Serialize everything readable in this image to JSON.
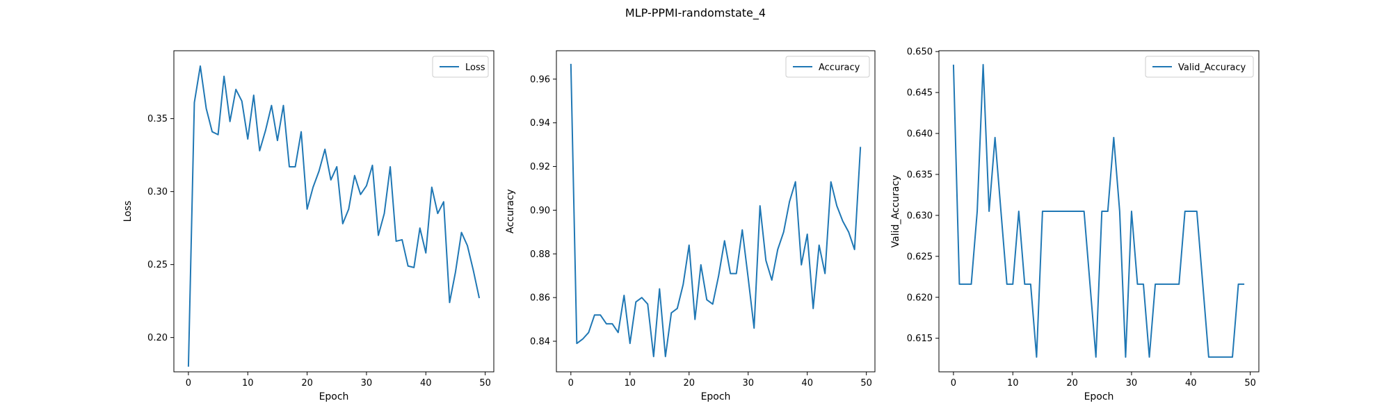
{
  "figure": {
    "title": "MLP-PPMI-randomstate_4"
  },
  "colors": {
    "line": "#1f77b4",
    "axes": "#000000",
    "legend_border": "#cccccc"
  },
  "chart_data": [
    {
      "type": "line",
      "xlabel": "Epoch",
      "ylabel": "Loss",
      "xlim": [
        -2.45,
        51.45
      ],
      "ylim": [
        0.1765,
        0.3965
      ],
      "xticks": [
        0,
        10,
        20,
        30,
        40,
        50
      ],
      "yticks": [
        0.2,
        0.25,
        0.3,
        0.35
      ],
      "ytick_labels": [
        "0.20",
        "0.25",
        "0.30",
        "0.35"
      ],
      "legend": "upper right",
      "series": [
        {
          "name": "Loss",
          "x": [
            0,
            1,
            2,
            3,
            4,
            5,
            6,
            7,
            8,
            9,
            10,
            11,
            12,
            13,
            14,
            15,
            16,
            17,
            18,
            19,
            20,
            21,
            22,
            23,
            24,
            25,
            26,
            27,
            28,
            29,
            30,
            31,
            32,
            33,
            34,
            35,
            36,
            37,
            38,
            39,
            40,
            41,
            42,
            43,
            44,
            45,
            46,
            47,
            48,
            49
          ],
          "y": [
            0.18,
            0.361,
            0.386,
            0.357,
            0.341,
            0.339,
            0.379,
            0.348,
            0.37,
            0.362,
            0.336,
            0.366,
            0.328,
            0.342,
            0.359,
            0.335,
            0.359,
            0.317,
            0.317,
            0.341,
            0.288,
            0.303,
            0.314,
            0.329,
            0.308,
            0.317,
            0.278,
            0.288,
            0.311,
            0.298,
            0.304,
            0.318,
            0.27,
            0.285,
            0.317,
            0.266,
            0.267,
            0.249,
            0.248,
            0.275,
            0.258,
            0.303,
            0.285,
            0.293,
            0.224,
            0.245,
            0.272,
            0.263,
            0.246,
            0.227
          ]
        }
      ]
    },
    {
      "type": "line",
      "xlabel": "Epoch",
      "ylabel": "Accuracy",
      "xlim": [
        -2.45,
        51.45
      ],
      "ylim": [
        0.826,
        0.973
      ],
      "xticks": [
        0,
        10,
        20,
        30,
        40,
        50
      ],
      "yticks": [
        0.84,
        0.86,
        0.88,
        0.9,
        0.92,
        0.94,
        0.96
      ],
      "ytick_labels": [
        "0.84",
        "0.86",
        "0.88",
        "0.90",
        "0.92",
        "0.94",
        "0.96"
      ],
      "legend": "upper right",
      "series": [
        {
          "name": "Accuracy",
          "x": [
            0,
            1,
            2,
            3,
            4,
            5,
            6,
            7,
            8,
            9,
            10,
            11,
            12,
            13,
            14,
            15,
            16,
            17,
            18,
            19,
            20,
            21,
            22,
            23,
            24,
            25,
            26,
            27,
            28,
            29,
            30,
            31,
            32,
            33,
            34,
            35,
            36,
            37,
            38,
            39,
            40,
            41,
            42,
            43,
            44,
            45,
            46,
            47,
            48,
            49
          ],
          "y": [
            0.967,
            0.839,
            0.841,
            0.844,
            0.852,
            0.852,
            0.848,
            0.848,
            0.844,
            0.861,
            0.839,
            0.858,
            0.86,
            0.857,
            0.833,
            0.864,
            0.833,
            0.853,
            0.855,
            0.866,
            0.884,
            0.85,
            0.875,
            0.859,
            0.857,
            0.87,
            0.886,
            0.871,
            0.871,
            0.891,
            0.869,
            0.846,
            0.902,
            0.877,
            0.868,
            0.882,
            0.89,
            0.904,
            0.913,
            0.875,
            0.889,
            0.855,
            0.884,
            0.871,
            0.913,
            0.902,
            0.895,
            0.89,
            0.882,
            0.929
          ]
        }
      ]
    },
    {
      "type": "line",
      "xlabel": "Epoch",
      "ylabel": "Valid_Accuracy",
      "xlim": [
        -2.45,
        51.45
      ],
      "ylim": [
        0.6109,
        0.6501
      ],
      "xticks": [
        0,
        10,
        20,
        30,
        40,
        50
      ],
      "yticks": [
        0.615,
        0.62,
        0.625,
        0.63,
        0.635,
        0.64,
        0.645,
        0.65
      ],
      "ytick_labels": [
        "0.615",
        "0.620",
        "0.625",
        "0.630",
        "0.635",
        "0.640",
        "0.645",
        "0.650"
      ],
      "legend": "upper right",
      "series": [
        {
          "name": "Valid_Accuracy",
          "x": [
            0,
            1,
            2,
            3,
            4,
            5,
            6,
            7,
            8,
            9,
            10,
            11,
            12,
            13,
            14,
            15,
            16,
            17,
            18,
            19,
            20,
            21,
            22,
            23,
            24,
            25,
            26,
            27,
            28,
            29,
            30,
            31,
            32,
            33,
            34,
            35,
            36,
            37,
            38,
            39,
            40,
            41,
            42,
            43,
            44,
            45,
            46,
            47,
            48,
            49
          ],
          "y": [
            0.6484,
            0.6216,
            0.6216,
            0.6216,
            0.6305,
            0.6484,
            0.6305,
            0.6395,
            0.6305,
            0.6216,
            0.6216,
            0.6305,
            0.6216,
            0.6216,
            0.6127,
            0.6305,
            0.6305,
            0.6305,
            0.6305,
            0.6305,
            0.6305,
            0.6305,
            0.6305,
            0.6216,
            0.6127,
            0.6305,
            0.6305,
            0.6395,
            0.6305,
            0.6127,
            0.6305,
            0.6216,
            0.6216,
            0.6127,
            0.6216,
            0.6216,
            0.6216,
            0.6216,
            0.6216,
            0.6305,
            0.6305,
            0.6305,
            0.6216,
            0.6127,
            0.6127,
            0.6127,
            0.6127,
            0.6127,
            0.6216,
            0.6216
          ]
        }
      ]
    }
  ]
}
